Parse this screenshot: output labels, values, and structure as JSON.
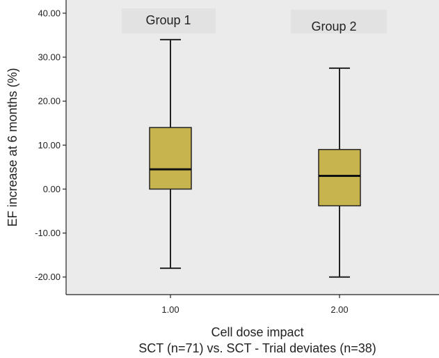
{
  "chart_data": {
    "type": "box",
    "categories": [
      "1.00",
      "2.00"
    ],
    "boxes": [
      {
        "category": "1.00",
        "min": -18.0,
        "q1": 0.0,
        "median": 4.5,
        "q3": 14.0,
        "max": 34.0
      },
      {
        "category": "2.00",
        "min": -20.0,
        "q1": -3.8,
        "median": 3.0,
        "q3": 9.0,
        "max": 27.5
      }
    ],
    "group_labels": [
      "Group 1",
      "Group 2"
    ],
    "ylabel": "EF increase at 6 months (%)",
    "xlabel_line1": "Cell dose impact",
    "xlabel_line2": "SCT (n=71) vs. SCT - Trial deviates (n=38)",
    "yticks": [
      "40.00",
      "30.00",
      "20.00",
      "10.00",
      "0.00",
      "-10.00",
      "-20.00"
    ],
    "ytick_values": [
      40,
      30,
      20,
      10,
      0,
      -10,
      -20
    ],
    "ylim": [
      -24.0,
      43.0
    ],
    "grid": false,
    "colors": {
      "plot_background": "#ebebeb",
      "box_fill": "#c8b44f",
      "box_stroke": "#222222",
      "group_label_background": "#e2e2e2"
    }
  }
}
